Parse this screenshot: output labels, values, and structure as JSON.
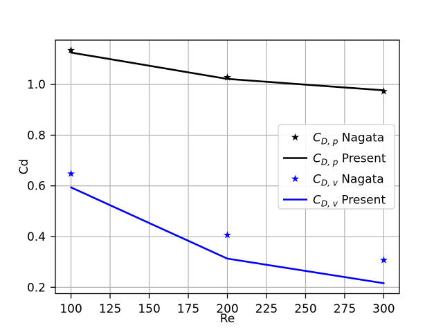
{
  "chart_data": {
    "type": "line",
    "title": "",
    "xlabel": "Re",
    "ylabel": "Cd",
    "xlim": [
      90,
      310
    ],
    "ylim": [
      0.175,
      1.175
    ],
    "xticks": [
      100,
      125,
      150,
      175,
      200,
      225,
      250,
      275,
      300
    ],
    "yticks": [
      0.2,
      0.4,
      0.6,
      0.8,
      1.0
    ],
    "grid": true,
    "legend_position": "center right",
    "x": [
      100,
      200,
      300
    ],
    "series": [
      {
        "name": "C_{D,p} Nagata",
        "style": "scatter",
        "marker": "star",
        "color": "#000000",
        "values": [
          1.135,
          1.028,
          0.973
        ],
        "legend": {
          "base": "C",
          "sub": "D, p",
          "rest": " Nagata"
        }
      },
      {
        "name": "C_{D,p} Present",
        "style": "line",
        "color": "#000000",
        "values": [
          1.126,
          1.022,
          0.977
        ],
        "legend": {
          "base": "C",
          "sub": "D, p",
          "rest": " Present"
        }
      },
      {
        "name": "C_{D,v} Nagata",
        "style": "scatter",
        "marker": "star",
        "color": "#0000ff",
        "values": [
          0.648,
          0.406,
          0.307
        ],
        "legend": {
          "base": "C",
          "sub": "D, v",
          "rest": " Nagata"
        }
      },
      {
        "name": "C_{D,v} Present",
        "style": "line",
        "color": "#0000ff",
        "values": [
          0.594,
          0.313,
          0.216
        ],
        "legend": {
          "base": "C",
          "sub": "D, v",
          "rest": " Present"
        }
      }
    ],
    "colors": {
      "background": "#ffffff",
      "axis": "#000000",
      "grid": "#b0b0b0",
      "legend_border": "#cccccc",
      "black_series": "#000000",
      "blue_series": "#0000ff"
    }
  }
}
